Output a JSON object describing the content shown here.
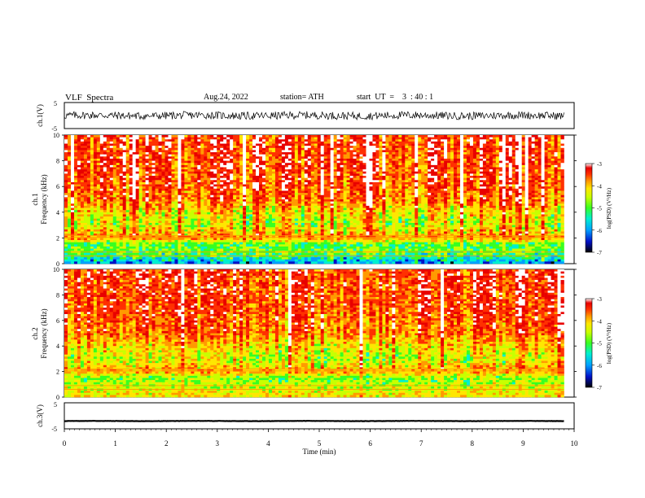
{
  "header": {
    "title": "VLF  Spectra",
    "date": "Aug.24, 2022",
    "station": "station= ATH",
    "start": "start  UT  =    3  : 40 : 1"
  },
  "colors": {
    "spectrogram_scale": [
      "#000000",
      "#0010c8",
      "#00a0ff",
      "#00f0d0",
      "#38ff20",
      "#c8ff00",
      "#ffe600",
      "#ff9a00",
      "#ff3000",
      "#e80000",
      "#ffffff"
    ],
    "waveform": "#000000",
    "axes": "#000000",
    "background": "#ffffff"
  },
  "chart_data": [
    {
      "type": "line",
      "name": "ch1-waveform",
      "ylabel": "ch.1(V)",
      "ylim": [
        -5,
        5
      ],
      "yticks": [
        "5",
        "-5"
      ],
      "x_range_min": [
        0,
        9.8
      ],
      "description_values": {
        "mean": 0.0,
        "amplitude_approx": 1.5
      }
    },
    {
      "type": "heatmap",
      "name": "ch1-spectrogram",
      "ylabel": "ch.1\nFrequency (kHz)",
      "ylabel_line1": "ch.1",
      "ylabel_line2": "Frequency (kHz)",
      "ylim": [
        0,
        10
      ],
      "yticks": [
        "0",
        "2",
        "4",
        "6",
        "8",
        "10"
      ],
      "xlim": [
        0,
        9.8
      ],
      "colorbar": {
        "label": "log(PSD) (V²/Hz)",
        "range": [
          -7,
          -3
        ],
        "ticks": [
          "-3",
          "-4",
          "-5",
          "-6",
          "-7"
        ]
      },
      "profile_by_frequency_khz": [
        {
          "f": 0.0,
          "level": -6.2
        },
        {
          "f": 0.5,
          "level": -5.6
        },
        {
          "f": 1.0,
          "level": -5.3
        },
        {
          "f": 1.5,
          "level": -5.4
        },
        {
          "f": 2.0,
          "level": -4.2
        },
        {
          "f": 3.0,
          "level": -4.9
        },
        {
          "f": 4.0,
          "level": -4.7
        },
        {
          "f": 5.0,
          "level": -4.1
        },
        {
          "f": 7.0,
          "level": -3.9
        },
        {
          "f": 10.0,
          "level": -3.8
        }
      ]
    },
    {
      "type": "heatmap",
      "name": "ch2-spectrogram",
      "ylabel_line1": "ch.2",
      "ylabel_line2": "Frequency (kHz)",
      "ylim": [
        0,
        10
      ],
      "yticks": [
        "0",
        "2",
        "4",
        "6",
        "8",
        "10"
      ],
      "xlim": [
        0,
        9.8
      ],
      "colorbar": {
        "label": "log(PSD) (V²/Hz)",
        "range": [
          -7,
          -3
        ],
        "ticks": [
          "-3",
          "-4",
          "-5",
          "-6",
          "-7"
        ]
      },
      "profile_by_frequency_khz": [
        {
          "f": 0.0,
          "level": -4.6
        },
        {
          "f": 0.5,
          "level": -4.8
        },
        {
          "f": 1.0,
          "level": -5.0
        },
        {
          "f": 1.5,
          "level": -5.2
        },
        {
          "f": 2.0,
          "level": -4.3
        },
        {
          "f": 3.0,
          "level": -4.9
        },
        {
          "f": 4.0,
          "level": -4.6
        },
        {
          "f": 5.0,
          "level": -4.1
        },
        {
          "f": 7.0,
          "level": -3.9
        },
        {
          "f": 10.0,
          "level": -3.8
        }
      ]
    },
    {
      "type": "line",
      "name": "ch3-waveform",
      "ylabel": "ch.3(V)",
      "ylim": [
        -5,
        5
      ],
      "yticks": [
        "5",
        "-5"
      ],
      "xlabel": "Time  (min)",
      "xlim": [
        0,
        10
      ],
      "xticks": [
        "0",
        "1",
        "2",
        "3",
        "4",
        "5",
        "6",
        "7",
        "8",
        "9",
        "10"
      ],
      "x_range_min": [
        0,
        9.8
      ],
      "description_values": {
        "mean": -2.0,
        "amplitude_approx": 0.2
      }
    }
  ]
}
